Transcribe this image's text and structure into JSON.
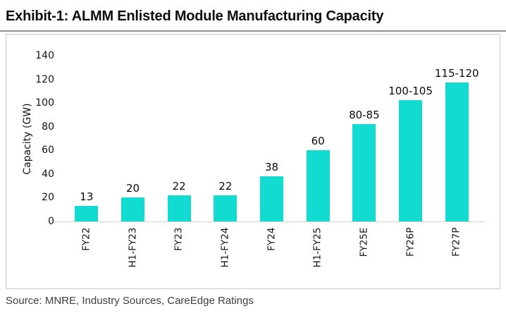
{
  "page": {
    "title": "Exhibit-1: ALMM Enlisted Module Manufacturing Capacity",
    "source": "Source: MNRE, Industry Sources, CareEdge Ratings"
  },
  "chart_data": {
    "type": "bar",
    "title": "ALMM Enlisted Module Manufacturing Capacity",
    "ylabel": "Capacity (GW)",
    "xlabel": "",
    "categories": [
      "FY22",
      "H1-FY23",
      "FY23",
      "H1-FY24",
      "FY24",
      "H1-FY25",
      "FY25E",
      "FY26P",
      "FY27P"
    ],
    "values": [
      13,
      20,
      22,
      22,
      38,
      60,
      82.5,
      102.5,
      117.5
    ],
    "value_labels": [
      "13",
      "20",
      "22",
      "22",
      "38",
      "60",
      "80-85",
      "100-105",
      "115-120"
    ],
    "yticks": [
      0,
      20,
      40,
      60,
      80,
      100,
      120,
      140
    ],
    "ylim": [
      0,
      140
    ],
    "grid": "off",
    "legend_position": "none",
    "bar_color": "#12DBD2",
    "axis_line_color": "#d4d4d4"
  }
}
